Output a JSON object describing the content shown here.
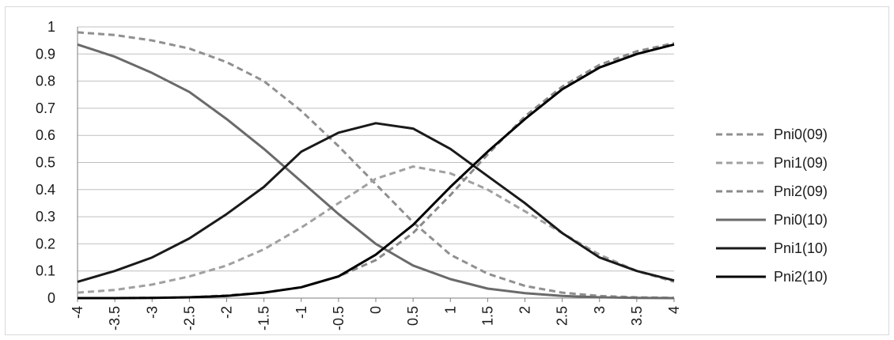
{
  "chart_data": {
    "type": "line",
    "title": "",
    "xlabel": "",
    "ylabel": "",
    "xlim": [
      -4,
      4
    ],
    "ylim": [
      0,
      1
    ],
    "grid": "horizontal",
    "legend_position": "right",
    "x_ticks": [
      "-4",
      "-3.5",
      "-3",
      "-2.5",
      "-2",
      "-1.5",
      "-1",
      "-0.5",
      "0",
      "0.5",
      "1",
      "1.5",
      "2",
      "2.5",
      "3",
      "3.5",
      "4"
    ],
    "y_ticks": [
      "0",
      "0.1",
      "0.2",
      "0.3",
      "0.4",
      "0.5",
      "0.6",
      "0.7",
      "0.8",
      "0.9",
      "1"
    ],
    "x": [
      -4,
      -3.5,
      -3,
      -2.5,
      -2,
      -1.5,
      -1,
      -0.5,
      0,
      0.5,
      1,
      1.5,
      2,
      2.5,
      3,
      3.5,
      4
    ],
    "series": [
      {
        "name": "Pni0(09)",
        "style": "dashed",
        "color": "#909090",
        "values": [
          0.98,
          0.97,
          0.95,
          0.92,
          0.87,
          0.8,
          0.69,
          0.56,
          0.42,
          0.28,
          0.16,
          0.09,
          0.045,
          0.02,
          0.008,
          0.003,
          0.001
        ]
      },
      {
        "name": "Pni1(09)",
        "style": "dashed",
        "color": "#a0a0a0",
        "values": [
          0.02,
          0.03,
          0.05,
          0.08,
          0.12,
          0.18,
          0.26,
          0.35,
          0.44,
          0.485,
          0.46,
          0.4,
          0.32,
          0.24,
          0.16,
          0.1,
          0.06
        ]
      },
      {
        "name": "Pni2(09)",
        "style": "dashed",
        "color": "#8a8a8a",
        "values": [
          0.0,
          0.0,
          0.001,
          0.003,
          0.01,
          0.02,
          0.04,
          0.08,
          0.14,
          0.24,
          0.38,
          0.53,
          0.67,
          0.78,
          0.86,
          0.91,
          0.94
        ]
      },
      {
        "name": "Pni0(10)",
        "style": "solid",
        "color": "#6a6a6a",
        "values": [
          0.935,
          0.89,
          0.83,
          0.76,
          0.66,
          0.55,
          0.43,
          0.31,
          0.2,
          0.12,
          0.07,
          0.035,
          0.018,
          0.008,
          0.003,
          0.001,
          0.0
        ]
      },
      {
        "name": "Pni1(10)",
        "style": "solid",
        "color": "#1a1a1a",
        "values": [
          0.06,
          0.1,
          0.15,
          0.22,
          0.31,
          0.41,
          0.54,
          0.61,
          0.645,
          0.625,
          0.55,
          0.45,
          0.35,
          0.24,
          0.15,
          0.1,
          0.065
        ]
      },
      {
        "name": "Pni2(10)",
        "style": "solid",
        "color": "#000000",
        "values": [
          0.0,
          0.0,
          0.001,
          0.003,
          0.008,
          0.02,
          0.04,
          0.08,
          0.16,
          0.27,
          0.41,
          0.54,
          0.66,
          0.77,
          0.85,
          0.9,
          0.935
        ]
      }
    ]
  }
}
